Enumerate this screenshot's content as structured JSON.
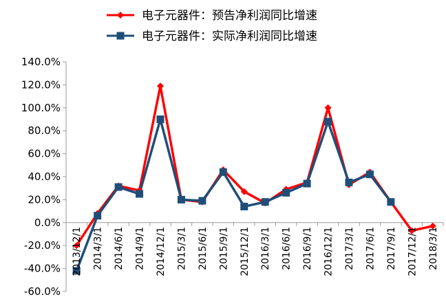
{
  "chart_data": {
    "type": "line",
    "categories": [
      "2013/12/1",
      "2014/3/1",
      "2014/6/1",
      "2014/9/1",
      "2014/12/1",
      "2015/3/1",
      "2015/6/1",
      "2015/9/1",
      "2015/12/1",
      "2016/3/1",
      "2016/6/1",
      "2016/9/1",
      "2016/12/1",
      "2017/3/1",
      "2017/6/1",
      "2017/9/1",
      "2017/12/1",
      "2018/3/1"
    ],
    "series": [
      {
        "name": "电子元器件：预告净利润同比增速",
        "color": "#ff0000",
        "marker": "diamond",
        "values": [
          -20,
          8,
          32,
          28,
          119,
          20,
          18,
          46,
          27,
          17,
          29,
          35,
          100,
          33,
          44,
          18,
          -7,
          -3
        ]
      },
      {
        "name": "电子元器件：实际净利润同比增速",
        "color": "#1f4e79",
        "marker": "square",
        "values": [
          -42,
          6,
          31,
          25,
          90,
          20,
          19,
          44,
          14,
          18,
          26,
          34,
          88,
          35,
          42,
          18,
          null,
          null
        ]
      }
    ],
    "yticks": [
      "-60.0%",
      "-40.0%",
      "-20.0%",
      "0.0%",
      "20.0%",
      "40.0%",
      "60.0%",
      "80.0%",
      "100.0%",
      "120.0%",
      "140.0%"
    ],
    "ylim": [
      -60,
      140
    ],
    "xlabel": "",
    "ylabel": "",
    "grid": false,
    "legend": "top"
  }
}
